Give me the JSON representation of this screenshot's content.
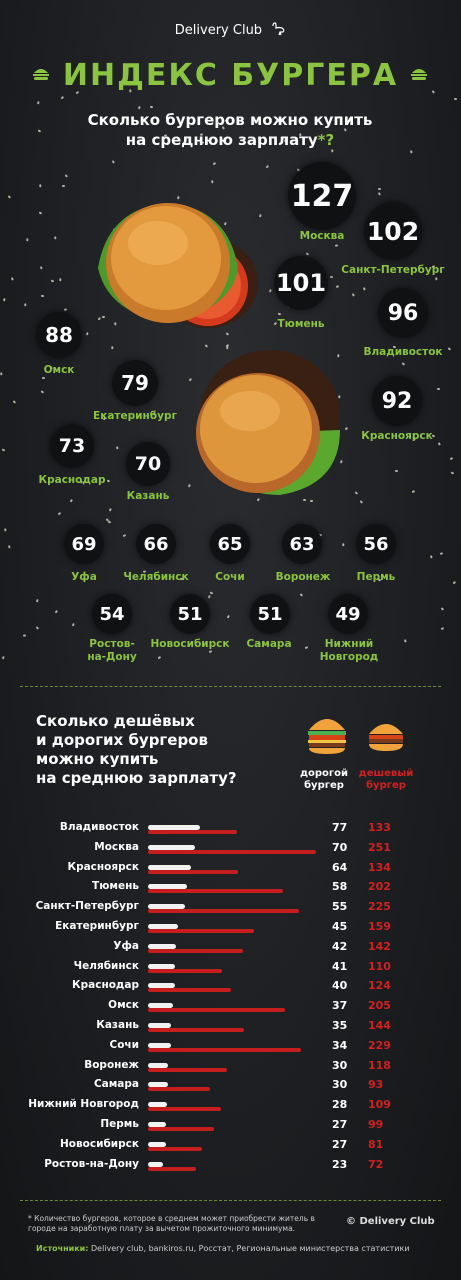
{
  "header": {
    "brand": "Delivery Club",
    "title": "ИНДЕКС БУРГЕРА",
    "subtitle_line1": "Сколько бургеров можно купить",
    "subtitle_line2": "на среднюю зарплату",
    "subtitle_star": "*?"
  },
  "bubbles": [
    {
      "city": "Москва",
      "value": "127"
    },
    {
      "city": "Санкт-Петербург",
      "value": "102"
    },
    {
      "city": "Тюмень",
      "value": "101"
    },
    {
      "city": "Владивосток",
      "value": "96"
    },
    {
      "city": "Омск",
      "value": "88"
    },
    {
      "city": "Екатеринбург",
      "value": "79"
    },
    {
      "city": "Красноярск",
      "value": "92"
    },
    {
      "city": "Краснодар",
      "value": "73"
    },
    {
      "city": "Казань",
      "value": "70"
    },
    {
      "city": "Уфа",
      "value": "69"
    },
    {
      "city": "Челябинск",
      "value": "66"
    },
    {
      "city": "Сочи",
      "value": "65"
    },
    {
      "city": "Воронеж",
      "value": "63"
    },
    {
      "city": "Пермь",
      "value": "56"
    },
    {
      "city": "Ростов-\nна-Дону",
      "value": "54"
    },
    {
      "city": "Новосибирск",
      "value": "51"
    },
    {
      "city": "Самара",
      "value": "51"
    },
    {
      "city": "Нижний\nНовгород",
      "value": "49"
    }
  ],
  "section2": {
    "question_l1": "Сколько дешёвых",
    "question_l2": "и дорогих бургеров",
    "question_l3": "можно купить",
    "question_l4": "на среднюю зарплату?",
    "legend_expensive": "дорогой\nбургер",
    "legend_cheap": "дешевый\nбургер"
  },
  "chart_data": {
    "type": "bar",
    "categories": [
      "Владивосток",
      "Москва",
      "Красноярск",
      "Тюмень",
      "Санкт-Петербург",
      "Екатеринбург",
      "Уфа",
      "Челябинск",
      "Краснодар",
      "Омск",
      "Казань",
      "Сочи",
      "Воронеж",
      "Самара",
      "Нижний Новгород",
      "Пермь",
      "Новосибирск",
      "Ростов-на-Дону"
    ],
    "series": [
      {
        "name": "дорогой бургер",
        "values": [
          77,
          70,
          64,
          58,
          55,
          45,
          42,
          41,
          40,
          37,
          35,
          34,
          30,
          30,
          28,
          27,
          27,
          23
        ]
      },
      {
        "name": "дешевый бургер",
        "values": [
          133,
          251,
          134,
          202,
          225,
          159,
          142,
          110,
          124,
          205,
          144,
          229,
          118,
          93,
          109,
          99,
          81,
          72
        ]
      }
    ],
    "colors": {
      "expensive": "#f2f2f2",
      "cheap": "#c41e1e"
    }
  },
  "footer": {
    "footnote": "* Количество бургеров, которое в среднем может приобрести житель в городе на заработную плату за вычетом прожиточного минимума.",
    "copyright": "© Delivery Club",
    "sources_label": "Источники:",
    "sources_text": "Delivery club, bankiros.ru, Росстат, Региональные министерства статистики"
  },
  "colors": {
    "accent": "#8bc53f",
    "background": "#1b1d20",
    "cheap": "#d32020"
  }
}
